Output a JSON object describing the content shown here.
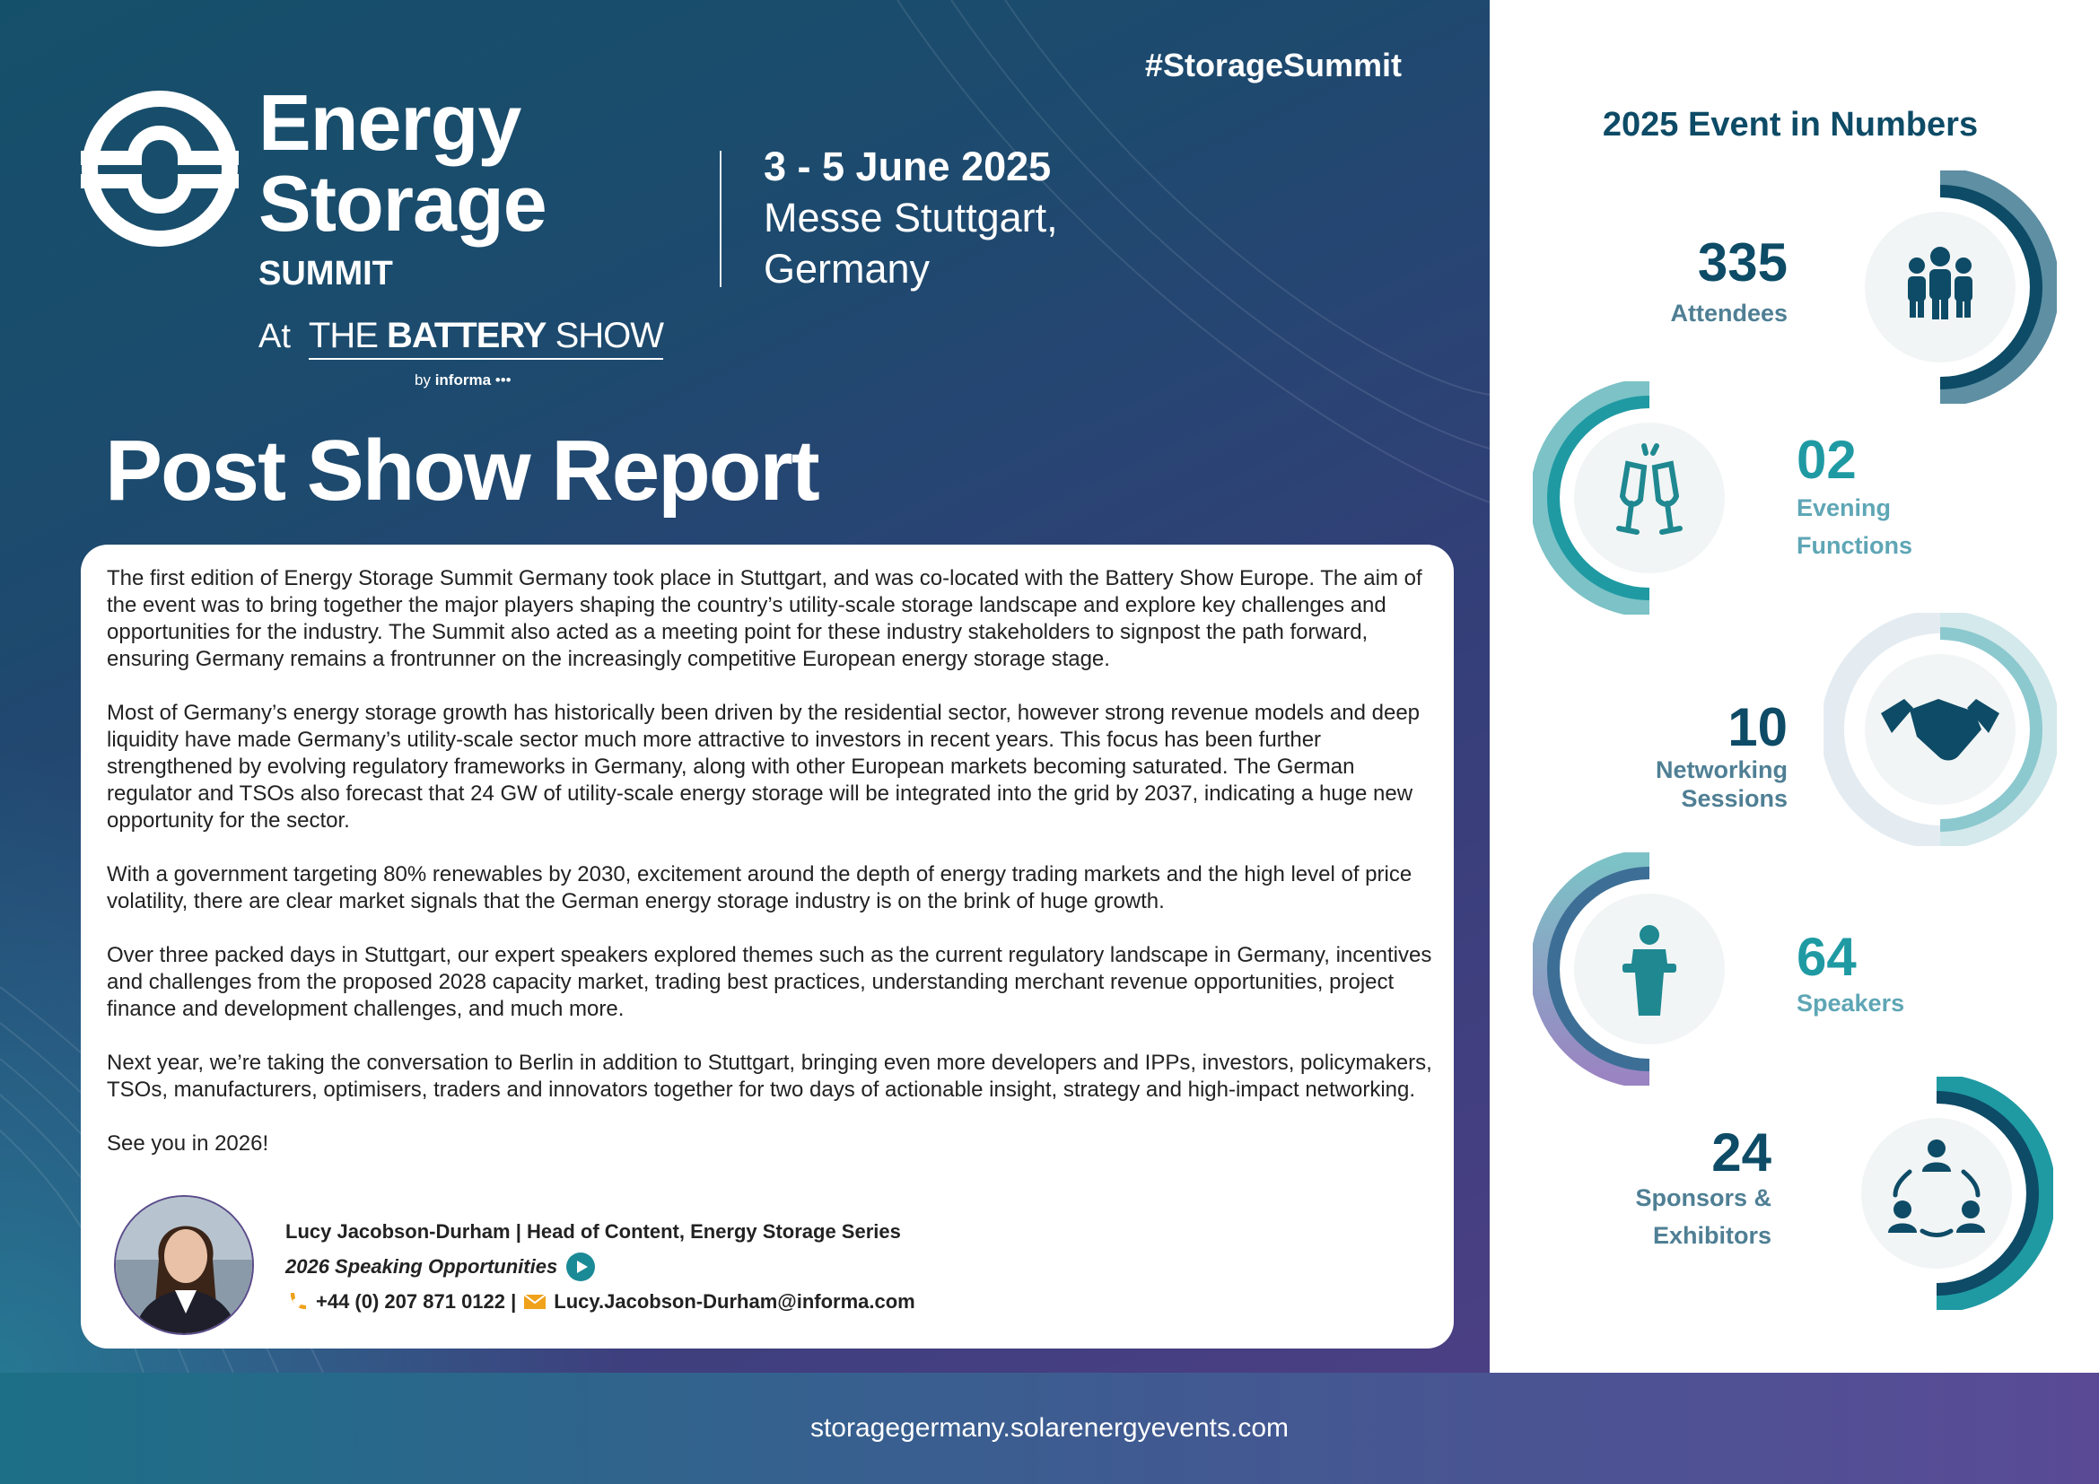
{
  "hashtag": "#StorageSummit",
  "logo": {
    "line1": "Energy",
    "line2": "Storage",
    "line3": "SUMMIT",
    "at": "At",
    "battery_pre": "THE ",
    "battery_bold": "BATTERY",
    "battery_post": " SHOW",
    "by": "by ",
    "by_brand": "informa"
  },
  "event": {
    "date": "3 - 5 June 2025",
    "place": "Messe Stuttgart, Germany"
  },
  "title": "Post Show Report",
  "paragraphs": [
    "The first edition of Energy Storage Summit Germany took place in Stuttgart, and was co-located with the Battery Show Europe. The aim of the event was to bring together the major players shaping the country’s utility-scale storage landscape and explore key challenges and opportunities for the industry. The Summit also acted as a meeting point for these industry stakeholders to signpost the path forward, ensuring Germany remains a frontrunner on the increasingly competitive European energy storage stage.",
    "Most of Germany’s energy storage growth has historically been driven by the residential sector, however strong revenue models and deep liquidity have made Germany’s utility-scale sector much more attractive to investors in recent years. This focus has been further strengthened by evolving regulatory frameworks in Germany, along with other European markets becoming saturated. The German regulator and TSOs also forecast that 24 GW of utility-scale energy storage will be integrated into the grid by 2037, indicating a huge new opportunity for the sector.",
    "With a government targeting 80% renewables by 2030, excitement around the depth of energy trading markets and the high level of price volatility, there are clear market signals that the German energy storage industry is on the brink of huge growth.",
    "Over three packed days in Stuttgart, our expert speakers explored themes such as the current regulatory landscape in Germany, incentives and challenges from the proposed 2028 capacity market, trading best practices, understanding merchant revenue opportunities, project finance and development challenges, and much more.",
    "Next year, we’re taking the conversation to Berlin in addition to Stuttgart, bringing even more developers and IPPs, investors, policymakers, TSOs, manufacturers, optimisers, traders and innovators together for two days of actionable insight, strategy and high-impact networking.",
    "See you in 2026!"
  ],
  "contact": {
    "name": "Lucy Jacobson-Durham | Head of Content, Energy Storage Series",
    "link": "2026 Speaking Opportunities",
    "phone": "+44 (0) 207 871 0122 | ",
    "email": "Lucy.Jacobson-Durham@informa.com"
  },
  "numbers": {
    "title": "2025 Event in Numbers",
    "stats": [
      {
        "value": "335",
        "label1": "Attendees",
        "label2": "",
        "icon": "people-icon"
      },
      {
        "value": "02",
        "label1": "Evening",
        "label2": "Functions",
        "icon": "champagne-icon"
      },
      {
        "value": "10",
        "label1": "Networking",
        "label2": "Sessions",
        "icon": "handshake-icon"
      },
      {
        "value": "64",
        "label1": "Speakers",
        "label2": "",
        "icon": "podium-icon"
      },
      {
        "value": "24",
        "label1": "Sponsors &",
        "label2": "Exhibitors",
        "icon": "network-icon"
      }
    ]
  },
  "colors": {
    "navy": "#0d4b66",
    "teal": "#1f9aa3",
    "slate": "#4f7f94"
  },
  "footer": {
    "url": "storagegermany.solarenergyevents.com"
  }
}
